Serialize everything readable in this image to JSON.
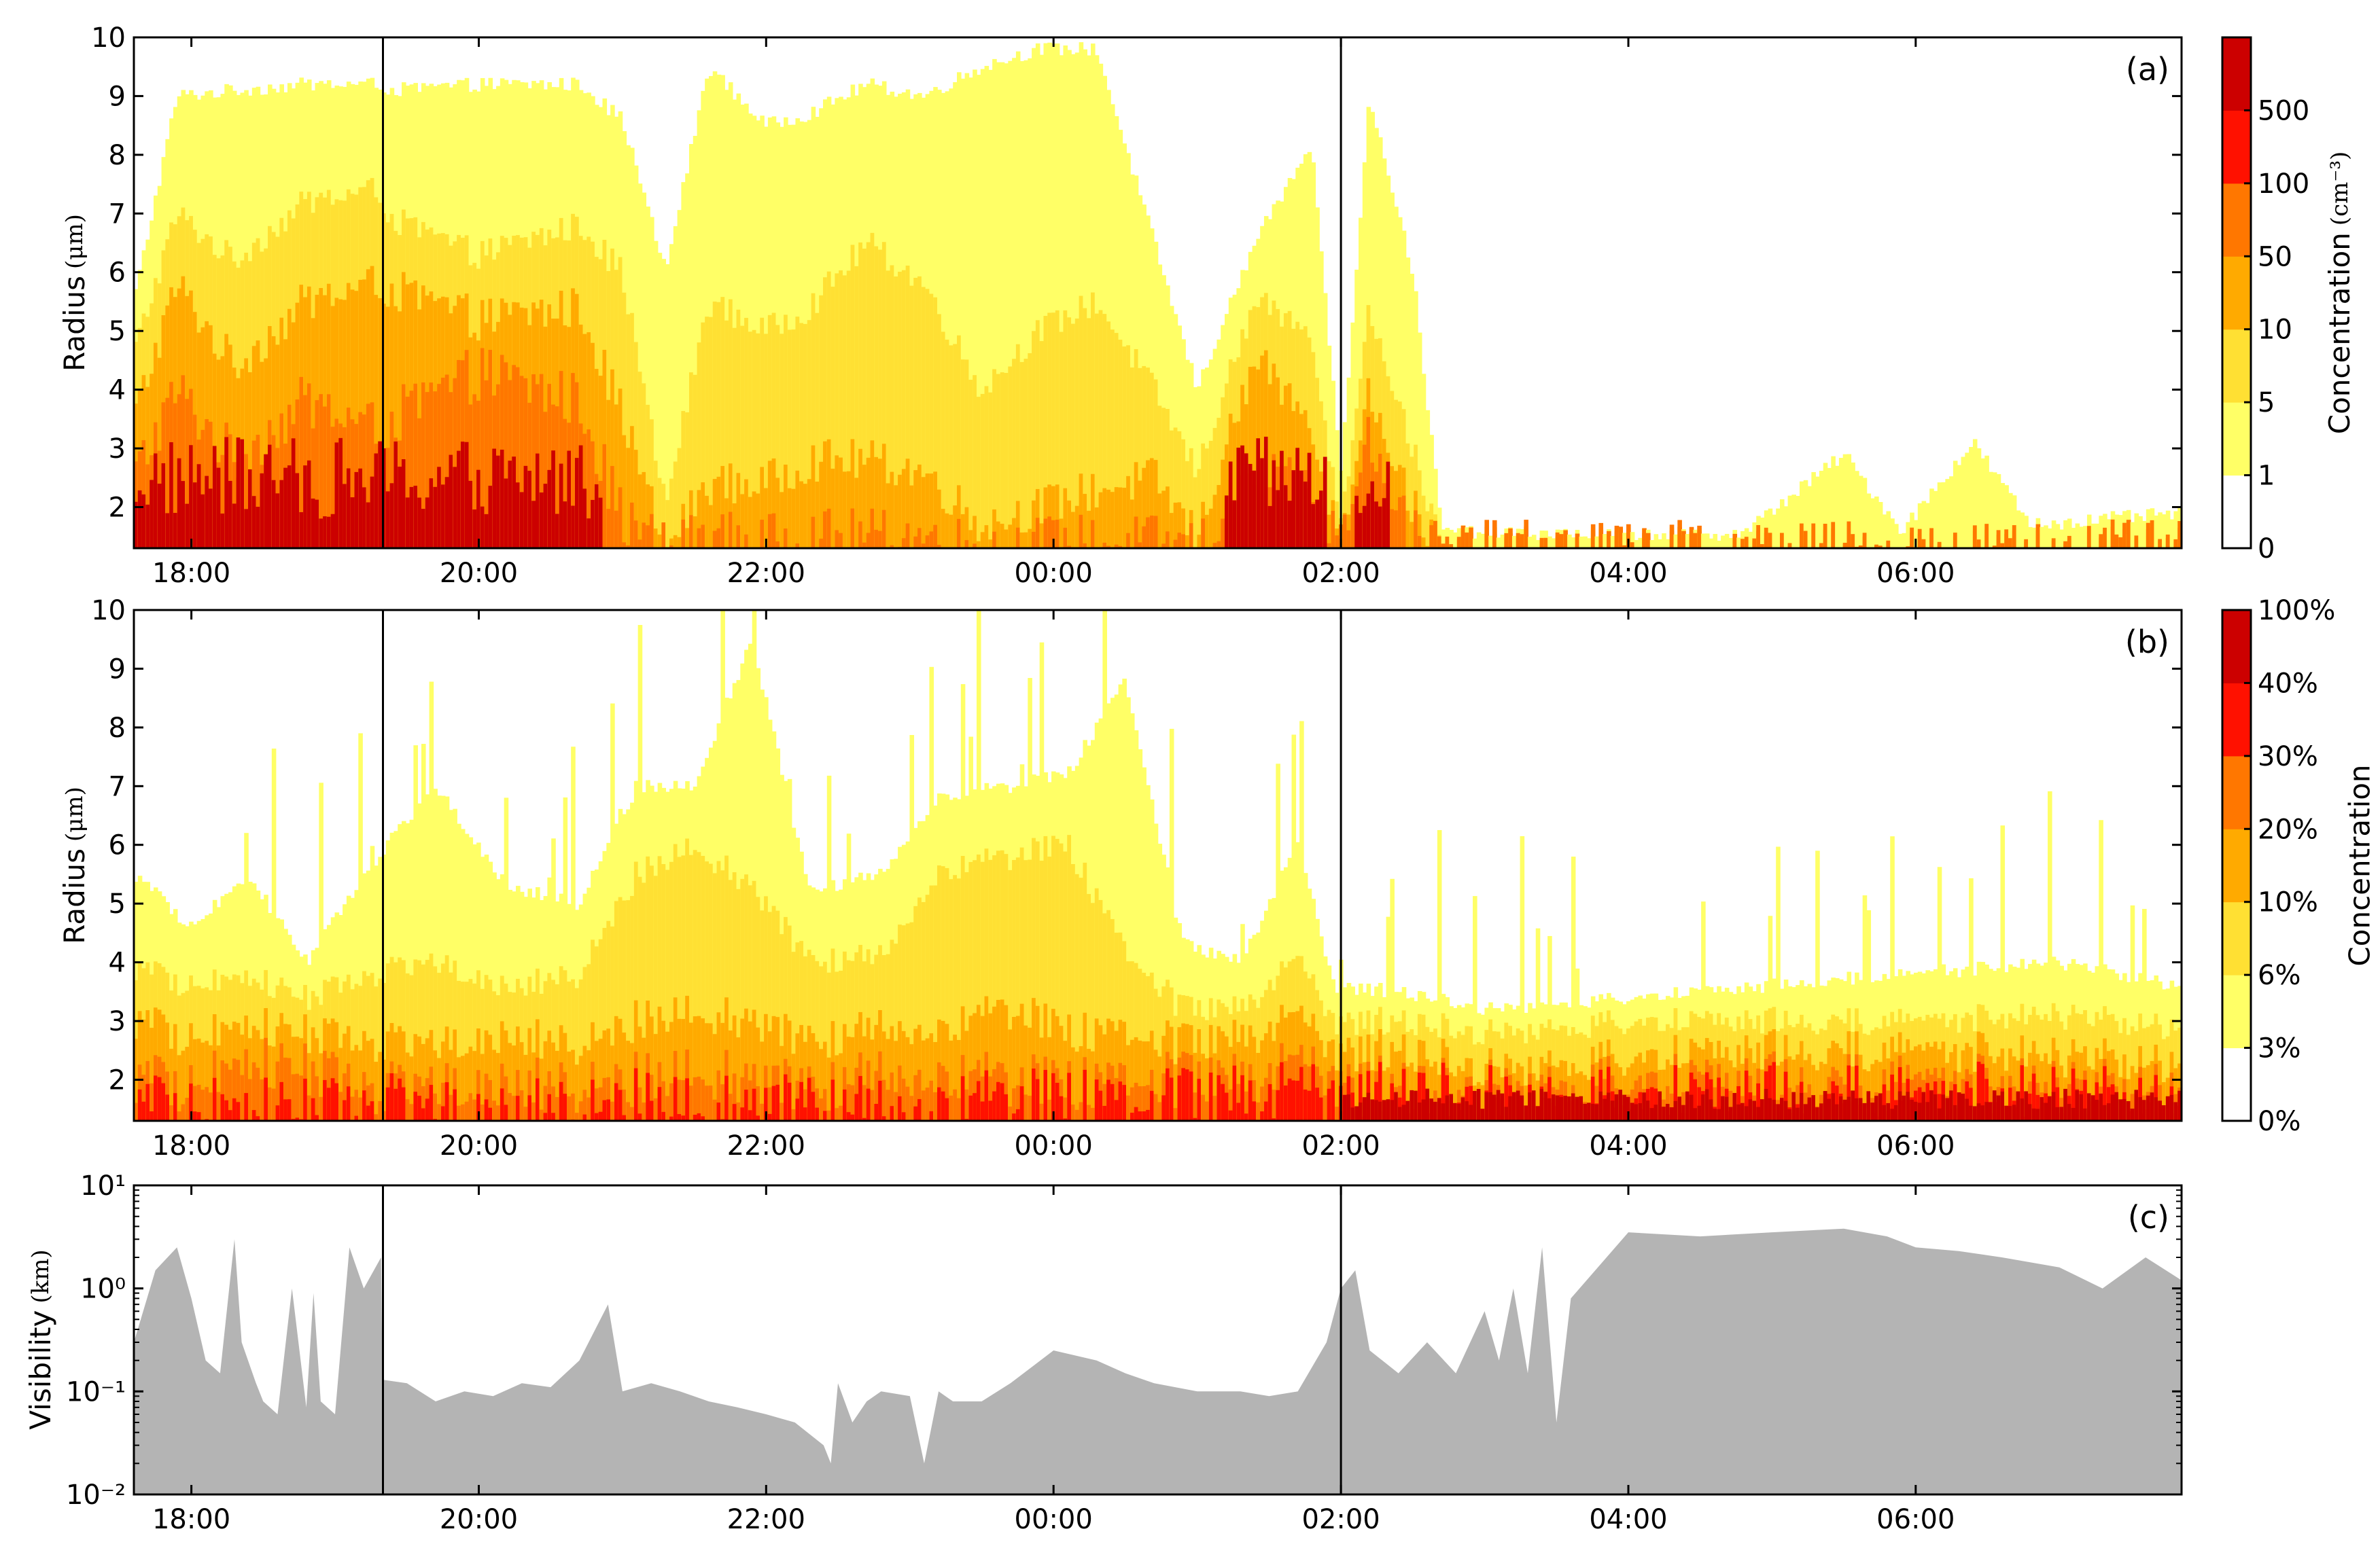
{
  "chart_data": [
    {
      "type": "heatmap",
      "panel_label": "(a)",
      "ylabel": "Radius",
      "ylabel_unit": "(μm)",
      "ylim": [
        1.3,
        10
      ],
      "yticks": [
        "2",
        "3",
        "4",
        "5",
        "6",
        "7",
        "8",
        "9",
        "10"
      ],
      "xticks": [
        "18:00",
        "20:00",
        "22:00",
        "00:00",
        "02:00",
        "04:00",
        "06:00"
      ],
      "x_hours": [
        17.6,
        7.85
      ],
      "vlines": [
        "19:20",
        "02:00"
      ],
      "colorbar": {
        "label": "Concentration",
        "label_unit": "(cm⁻³)",
        "levels": [
          "0",
          "1",
          "5",
          "10",
          "50",
          "100",
          "500"
        ],
        "colors": [
          "#ffffff",
          "#ffff66",
          "#ffe033",
          "#ffaa00",
          "#ff7700",
          "#ff1100",
          "#cc0000"
        ]
      },
      "column_profiles": [
        {
          "t": 17.6,
          "h": [
            5.5,
            4.6,
            3.5,
            2.5
          ],
          "d": 1
        },
        {
          "t": 17.9,
          "h": [
            9.0,
            7.0,
            5.8,
            4.0
          ],
          "d": 1
        },
        {
          "t": 18.3,
          "h": [
            9.1,
            6.2,
            4.4,
            2.8
          ],
          "d": 1
        },
        {
          "t": 18.8,
          "h": [
            9.2,
            7.2,
            5.5,
            3.8
          ],
          "d": 1
        },
        {
          "t": 19.3,
          "h": [
            9.2,
            7.4,
            5.8,
            3.3
          ],
          "d": 1
        },
        {
          "t": 19.4,
          "h": [
            9.1,
            6.9,
            5.7,
            3.5
          ],
          "d": 1
        },
        {
          "t": 20.0,
          "h": [
            9.2,
            6.3,
            5.2,
            4.3
          ],
          "d": 1
        },
        {
          "t": 20.7,
          "h": [
            9.2,
            6.8,
            5.4,
            3.8
          ],
          "d": 1
        },
        {
          "t": 21.0,
          "h": [
            8.6,
            6.0,
            3.6,
            1.8
          ],
          "d": 0
        },
        {
          "t": 21.3,
          "h": [
            6.0,
            2.0,
            1.3,
            1.3
          ],
          "d": 0
        },
        {
          "t": 21.6,
          "h": [
            9.5,
            5.5,
            2.4,
            1.5
          ],
          "d": 0
        },
        {
          "t": 22.0,
          "h": [
            8.5,
            5.0,
            2.4,
            1.4
          ],
          "d": 0
        },
        {
          "t": 22.3,
          "h": [
            8.7,
            5.4,
            2.8,
            1.5
          ],
          "d": 0
        },
        {
          "t": 22.7,
          "h": [
            9.2,
            6.5,
            2.8,
            1.5
          ],
          "d": 0
        },
        {
          "t": 23.1,
          "h": [
            9.0,
            5.8,
            2.6,
            1.5
          ],
          "d": 0
        },
        {
          "t": 23.5,
          "h": [
            9.5,
            4.0,
            1.7,
            1.3
          ],
          "d": 0
        },
        {
          "t": 23.9,
          "h": [
            9.8,
            5.0,
            2.0,
            1.4
          ],
          "d": 0
        },
        {
          "t": 24.3,
          "h": [
            9.8,
            5.5,
            2.3,
            1.4
          ],
          "d": 0
        },
        {
          "t": 24.7,
          "h": [
            6.5,
            4.0,
            2.5,
            1.4
          ],
          "d": 0
        },
        {
          "t": 25.0,
          "h": [
            4.0,
            2.6,
            1.5,
            1.3
          ],
          "d": 0
        },
        {
          "t": 25.4,
          "h": [
            6.5,
            5.5,
            4.5,
            2.5
          ],
          "d": 1
        },
        {
          "t": 25.8,
          "h": [
            8.2,
            5.0,
            3.5,
            2.6
          ],
          "d": 1
        },
        {
          "t": 26.0,
          "h": [
            2.5,
            1.6,
            1.3,
            1.3
          ],
          "d": 0
        },
        {
          "t": 26.2,
          "h": [
            9.0,
            5.4,
            4.0,
            3.2
          ],
          "d": 1
        },
        {
          "t": 26.5,
          "h": [
            6.0,
            3.0,
            2.0,
            1.5
          ],
          "d": 0
        },
        {
          "t": 26.7,
          "h": [
            1.6,
            1.3,
            1.3,
            1.3
          ],
          "d": 0
        },
        {
          "t": 27.5,
          "h": [
            1.55,
            1.3,
            1.3,
            1.3
          ],
          "d": 0
        },
        {
          "t": 28.8,
          "h": [
            1.55,
            1.3,
            1.3,
            1.3
          ],
          "d": 0
        },
        {
          "t": 29.5,
          "h": [
            2.9,
            1.3,
            1.3,
            1.3
          ],
          "d": 0
        },
        {
          "t": 29.9,
          "h": [
            1.6,
            1.3,
            1.3,
            1.3
          ],
          "d": 0
        },
        {
          "t": 30.4,
          "h": [
            3.1,
            1.3,
            1.3,
            1.3
          ],
          "d": 0
        },
        {
          "t": 30.8,
          "h": [
            1.7,
            1.3,
            1.3,
            1.3
          ],
          "d": 0
        },
        {
          "t": 31.85,
          "h": [
            1.9,
            1.3,
            1.3,
            1.3
          ],
          "d": 0
        }
      ]
    },
    {
      "type": "heatmap",
      "panel_label": "(b)",
      "ylabel": "Radius",
      "ylabel_unit": "(μm)",
      "ylim": [
        1.3,
        10
      ],
      "yticks": [
        "2",
        "3",
        "4",
        "5",
        "6",
        "7",
        "8",
        "9",
        "10"
      ],
      "xticks": [
        "18:00",
        "20:00",
        "22:00",
        "00:00",
        "02:00",
        "04:00",
        "06:00"
      ],
      "x_hours": [
        17.6,
        7.85
      ],
      "vlines": [
        "19:20",
        "02:00"
      ],
      "colorbar": {
        "label": "Concentration",
        "levels": [
          "0%",
          "3%",
          "6%",
          "10%",
          "20%",
          "30%",
          "40%",
          "100%"
        ],
        "colors": [
          "#ffffff",
          "#ffff66",
          "#ffe033",
          "#ffaa00",
          "#ff7700",
          "#ff1100",
          "#cc0000"
        ]
      },
      "column_profiles": [
        {
          "t": 17.6,
          "h": [
            5.5,
            3.9,
            3.0,
            2.0,
            1.5
          ],
          "d": 0
        },
        {
          "t": 18.0,
          "h": [
            4.6,
            3.6,
            2.7,
            1.9,
            1.5
          ],
          "d": 0
        },
        {
          "t": 18.4,
          "h": [
            5.5,
            3.8,
            3.0,
            2.4,
            1.6
          ],
          "d": 0
        },
        {
          "t": 18.8,
          "h": [
            4.0,
            3.4,
            2.8,
            2.2,
            1.5
          ],
          "d": 0
        },
        {
          "t": 19.3,
          "h": [
            5.8,
            3.8,
            2.6,
            1.8,
            1.5
          ],
          "d": 0
        },
        {
          "t": 19.7,
          "h": [
            7.0,
            4.0,
            2.6,
            1.9,
            1.5
          ],
          "d": 0
        },
        {
          "t": 20.2,
          "h": [
            5.3,
            3.6,
            2.8,
            2.0,
            1.5
          ],
          "d": 0
        },
        {
          "t": 20.7,
          "h": [
            5.0,
            3.8,
            2.6,
            1.9,
            1.5
          ],
          "d": 0
        },
        {
          "t": 21.1,
          "h": [
            7.0,
            5.5,
            3.0,
            2.0,
            1.6
          ],
          "d": 0
        },
        {
          "t": 21.5,
          "h": [
            7.0,
            6.0,
            3.2,
            2.2,
            1.6
          ],
          "d": 0
        },
        {
          "t": 21.9,
          "h": [
            9.5,
            5.3,
            3.0,
            2.0,
            1.5
          ],
          "d": 0
        },
        {
          "t": 22.3,
          "h": [
            5.2,
            4.0,
            2.6,
            1.8,
            1.5
          ],
          "d": 0
        },
        {
          "t": 22.8,
          "h": [
            5.5,
            4.1,
            2.9,
            2.1,
            1.5
          ],
          "d": 0
        },
        {
          "t": 23.2,
          "h": [
            6.8,
            5.5,
            2.8,
            2.0,
            1.5
          ],
          "d": 0
        },
        {
          "t": 23.7,
          "h": [
            7.0,
            5.8,
            3.2,
            2.0,
            1.6
          ],
          "d": 0
        },
        {
          "t": 24.1,
          "h": [
            7.2,
            6.0,
            2.8,
            1.9,
            1.6
          ],
          "d": 0
        },
        {
          "t": 24.5,
          "h": [
            8.8,
            4.2,
            2.8,
            2.0,
            1.6
          ],
          "d": 0
        },
        {
          "t": 24.9,
          "h": [
            4.3,
            3.2,
            2.6,
            2.0,
            1.6
          ],
          "d": 0
        },
        {
          "t": 25.3,
          "h": [
            4.0,
            3.2,
            2.7,
            2.0,
            1.7
          ],
          "d": 0
        },
        {
          "t": 25.7,
          "h": [
            6.0,
            4.0,
            3.0,
            2.2,
            1.7
          ],
          "d": 0
        },
        {
          "t": 25.95,
          "h": [
            3.6,
            3.0,
            2.5,
            2.0,
            1.7
          ],
          "d": 0
        },
        {
          "t": 26.4,
          "h": [
            3.5,
            3.0,
            2.5,
            1.9,
            1.7
          ],
          "d": 0
        },
        {
          "t": 27.0,
          "h": [
            3.2,
            2.8,
            2.2,
            1.9,
            1.7
          ],
          "d": 0
        },
        {
          "t": 28.0,
          "h": [
            3.4,
            3.0,
            2.4,
            2.0,
            1.7
          ],
          "d": 0
        },
        {
          "t": 29.0,
          "h": [
            3.6,
            3.0,
            2.5,
            2.0,
            1.7
          ],
          "d": 0
        },
        {
          "t": 30.0,
          "h": [
            3.8,
            3.0,
            2.5,
            2.0,
            1.7
          ],
          "d": 0
        },
        {
          "t": 31.0,
          "h": [
            4.0,
            3.1,
            2.4,
            1.9,
            1.7
          ],
          "d": 0
        },
        {
          "t": 31.85,
          "h": [
            3.6,
            2.9,
            2.3,
            1.9,
            1.6
          ],
          "d": 0
        }
      ]
    },
    {
      "type": "area",
      "panel_label": "(c)",
      "ylabel": "Visibility",
      "ylabel_unit": "(km)",
      "yscale": "log",
      "ylim": [
        0.01,
        10
      ],
      "yticks": [
        "10⁻²",
        "10⁻¹",
        "10⁰",
        "10¹"
      ],
      "xticks": [
        "18:00",
        "20:00",
        "22:00",
        "00:00",
        "02:00",
        "04:00",
        "06:00"
      ],
      "x_hours": [
        17.6,
        7.85
      ],
      "vlines": [
        "19:20",
        "02:00"
      ],
      "fill_color": "#b4b4b4",
      "series": [
        {
          "t": [
            17.6,
            17.75,
            17.9,
            18.0,
            18.1,
            18.2,
            18.3,
            18.35,
            18.45,
            18.5,
            18.6,
            18.7,
            18.8,
            18.85,
            18.9,
            19.0,
            19.1,
            19.2,
            19.32,
            19.33,
            19.5,
            19.7,
            19.9,
            20.1,
            20.3,
            20.5,
            20.7,
            20.9,
            21.0,
            21.2,
            21.4,
            21.6,
            21.8,
            22.0,
            22.2,
            22.4,
            22.45,
            22.5,
            22.6,
            22.7,
            22.8,
            23.0,
            23.1,
            23.2,
            23.3,
            23.5,
            23.7,
            24.0,
            24.3,
            24.5,
            24.7,
            25.0,
            25.3,
            25.5,
            25.7,
            25.9,
            26.0,
            26.1,
            26.2,
            26.4,
            26.6,
            26.8,
            27.0,
            27.1,
            27.2,
            27.3,
            27.4,
            27.5,
            27.6,
            28.0,
            28.5,
            29.0,
            29.5,
            29.8,
            30.0,
            30.3,
            30.6,
            31.0,
            31.3,
            31.6,
            31.85
          ],
          "v": [
            0.3,
            1.5,
            2.5,
            0.8,
            0.2,
            0.15,
            3.0,
            0.3,
            0.12,
            0.08,
            0.06,
            1.0,
            0.07,
            0.9,
            0.08,
            0.06,
            2.5,
            1.0,
            2.0,
            0.13,
            0.12,
            0.08,
            0.1,
            0.09,
            0.12,
            0.11,
            0.2,
            0.7,
            0.1,
            0.12,
            0.1,
            0.08,
            0.07,
            0.06,
            0.05,
            0.03,
            0.02,
            0.12,
            0.05,
            0.08,
            0.1,
            0.09,
            0.02,
            0.1,
            0.08,
            0.08,
            0.12,
            0.25,
            0.2,
            0.15,
            0.12,
            0.1,
            0.1,
            0.09,
            0.1,
            0.3,
            1.0,
            1.5,
            0.25,
            0.15,
            0.3,
            0.15,
            0.6,
            0.2,
            1.0,
            0.15,
            2.5,
            0.05,
            0.8,
            3.5,
            3.2,
            3.5,
            3.8,
            3.2,
            2.5,
            2.3,
            2.0,
            1.6,
            1.0,
            2.0,
            1.2
          ]
        }
      ]
    }
  ]
}
